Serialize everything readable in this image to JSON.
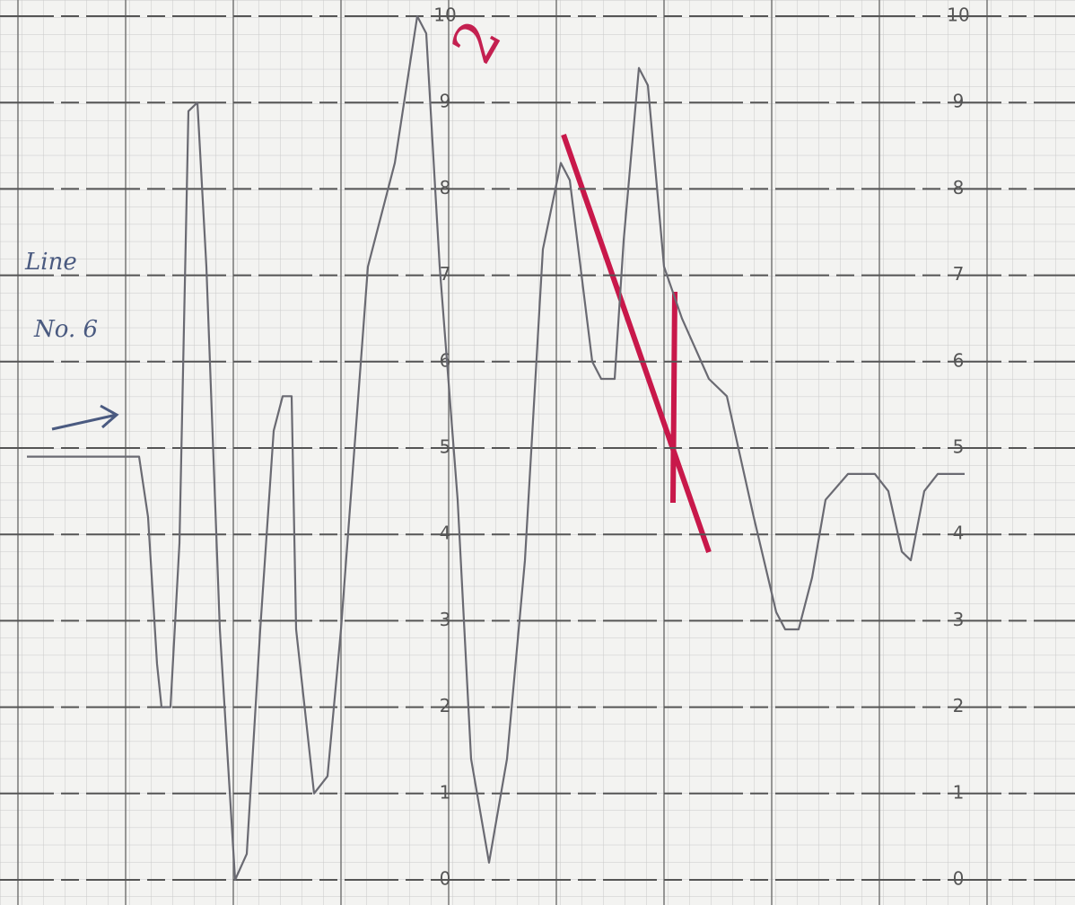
{
  "chart_data": {
    "type": "line",
    "annotations": [
      "Line",
      "No. 6",
      "2"
    ],
    "xlim": [
      0,
      120
    ],
    "ylim": [
      0,
      10
    ],
    "yticks": [
      0,
      1,
      2,
      3,
      4,
      5,
      6,
      7,
      8,
      9,
      10
    ],
    "grid": true,
    "series": [
      {
        "name": null,
        "color": "#6a6a72",
        "x": [
          3,
          15.5,
          16.5,
          17.5,
          18,
          19,
          20,
          21,
          22,
          23,
          24.5,
          26.2,
          27.5,
          29,
          30.5,
          31.5,
          32.5,
          33,
          35,
          36.5,
          38,
          41,
          44,
          46.5,
          47.5,
          49,
          51,
          52.5,
          54.5,
          56.5,
          58.5,
          60.5,
          62.5,
          63.5,
          66,
          67,
          68.5,
          69.5,
          71.2,
          72.2,
          74,
          76,
          79,
          81,
          84,
          86.5,
          87.5,
          89,
          90.5,
          92,
          94.5,
          97.5,
          99,
          100.5,
          101.5,
          103,
          104.5,
          107.5
        ],
        "values": [
          4.9,
          4.9,
          4.2,
          2.5,
          2.0,
          2.0,
          3.9,
          8.9,
          9.0,
          7.1,
          2.9,
          0,
          0.3,
          2.9,
          5.2,
          5.6,
          5.6,
          2.9,
          1.0,
          1.2,
          2.9,
          7.1,
          8.3,
          10,
          9.8,
          7.1,
          4.4,
          1.4,
          0.2,
          1.4,
          3.7,
          7.3,
          8.3,
          8.1,
          6.0,
          5.8,
          5.8,
          7.4,
          9.4,
          9.2,
          7.1,
          6.5,
          5.8,
          5.6,
          4.2,
          3.1,
          2.9,
          2.9,
          3.5,
          4.4,
          4.7,
          4.7,
          4.5,
          3.8,
          3.7,
          4.5,
          4.7,
          4.7
        ]
      }
    ]
  }
}
